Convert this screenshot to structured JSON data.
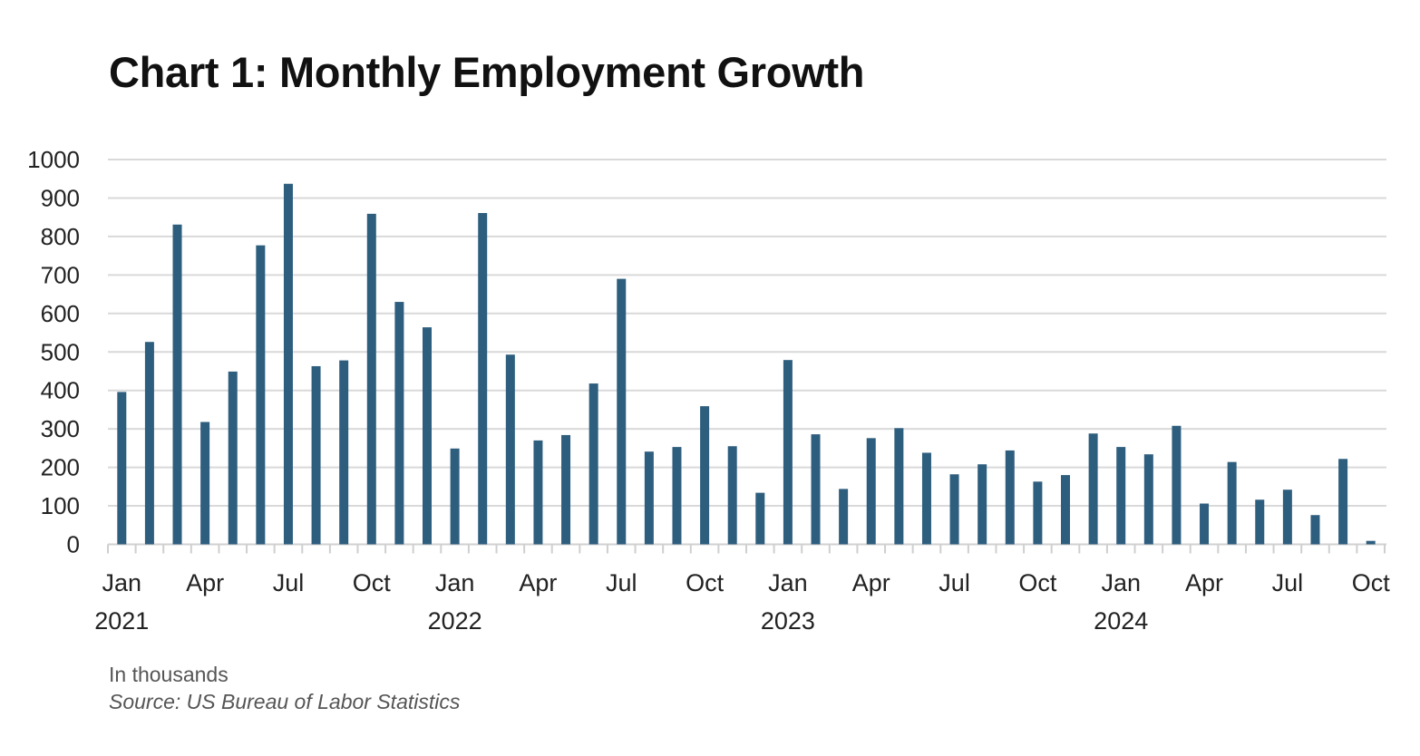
{
  "chart_data": {
    "type": "bar",
    "title": "Chart 1: Monthly Employment Growth",
    "xlabel": "",
    "ylabel": "",
    "unit_note": "In thousands",
    "source": "Source: US Bureau of Labor Statistics",
    "ylim": [
      0,
      1000
    ],
    "yticks": [
      "0",
      "100",
      "200",
      "300",
      "400",
      "500",
      "600",
      "700",
      "800",
      "900",
      "1000"
    ],
    "grid": true,
    "bar_color": "#2e5e7e",
    "categories": [
      "Jan 2021",
      "Feb 2021",
      "Mar 2021",
      "Apr 2021",
      "May 2021",
      "Jun 2021",
      "Jul 2021",
      "Aug 2021",
      "Sep 2021",
      "Oct 2021",
      "Nov 2021",
      "Dec 2021",
      "Jan 2022",
      "Feb 2022",
      "Mar 2022",
      "Apr 2022",
      "May 2022",
      "Jun 2022",
      "Jul 2022",
      "Aug 2022",
      "Sep 2022",
      "Oct 2022",
      "Nov 2022",
      "Dec 2022",
      "Jan 2023",
      "Feb 2023",
      "Mar 2023",
      "Apr 2023",
      "May 2023",
      "Jun 2023",
      "Jul 2023",
      "Aug 2023",
      "Sep 2023",
      "Oct 2023",
      "Nov 2023",
      "Dec 2023",
      "Jan 2024",
      "Feb 2024",
      "Mar 2024",
      "Apr 2024",
      "May 2024",
      "Jun 2024",
      "Jul 2024",
      "Aug 2024",
      "Sep 2024",
      "Oct 2024"
    ],
    "values": [
      396,
      526,
      831,
      318,
      449,
      777,
      937,
      463,
      478,
      859,
      630,
      564,
      249,
      861,
      493,
      270,
      284,
      418,
      690,
      241,
      253,
      359,
      255,
      134,
      479,
      286,
      144,
      276,
      302,
      238,
      182,
      208,
      244,
      163,
      180,
      288,
      253,
      234,
      308,
      106,
      214,
      116,
      142,
      76,
      222,
      9
    ],
    "xtick_labels": [
      {
        "index": 0,
        "month": "Jan",
        "year": "2021"
      },
      {
        "index": 3,
        "month": "Apr"
      },
      {
        "index": 6,
        "month": "Jul"
      },
      {
        "index": 9,
        "month": "Oct"
      },
      {
        "index": 12,
        "month": "Jan",
        "year": "2022"
      },
      {
        "index": 15,
        "month": "Apr"
      },
      {
        "index": 18,
        "month": "Jul"
      },
      {
        "index": 21,
        "month": "Oct"
      },
      {
        "index": 24,
        "month": "Jan",
        "year": "2023"
      },
      {
        "index": 27,
        "month": "Apr"
      },
      {
        "index": 30,
        "month": "Jul"
      },
      {
        "index": 33,
        "month": "Oct"
      },
      {
        "index": 36,
        "month": "Jan",
        "year": "2024"
      },
      {
        "index": 39,
        "month": "Apr"
      },
      {
        "index": 42,
        "month": "Jul"
      },
      {
        "index": 45,
        "month": "Oct"
      }
    ]
  }
}
